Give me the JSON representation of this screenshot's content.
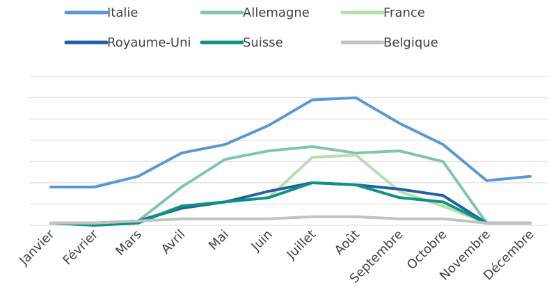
{
  "chart_data": {
    "type": "line",
    "categories": [
      "Janvier",
      "Février",
      "Mars",
      "Avril",
      "Mai",
      "Juin",
      "Juillet",
      "Août",
      "Septembre",
      "Octobre",
      "Novembre",
      "Décembre"
    ],
    "series": [
      {
        "name": "Italie",
        "color": "#5b97d5",
        "values": [
          1.8,
          1.8,
          2.3,
          3.4,
          3.8,
          4.7,
          5.9,
          6.0,
          4.8,
          3.8,
          2.1,
          2.3
        ]
      },
      {
        "name": "Allemagne",
        "color": "#7fc6aa",
        "values": [
          0.1,
          0.1,
          0.2,
          1.8,
          3.1,
          3.5,
          3.7,
          3.4,
          3.5,
          3.0,
          0.1,
          0.1
        ]
      },
      {
        "name": "France",
        "color": "#b5dfae",
        "values": [
          0.1,
          0.1,
          0.2,
          0.9,
          1.1,
          1.3,
          3.2,
          3.3,
          1.6,
          0.9,
          0.1,
          0.1
        ]
      },
      {
        "name": "Royaume-Uni",
        "color": "#225fa6",
        "values": [
          0.1,
          0.1,
          0.2,
          0.8,
          1.1,
          1.6,
          2.0,
          1.9,
          1.7,
          1.4,
          0.1,
          0.1
        ]
      },
      {
        "name": "Suisse",
        "color": "#0b9484",
        "values": [
          0.1,
          0.0,
          0.1,
          0.9,
          1.1,
          1.3,
          2.0,
          1.9,
          1.3,
          1.1,
          0.1,
          0.1
        ]
      },
      {
        "name": "Belgique",
        "color": "#c2c2c2",
        "values": [
          0.1,
          0.1,
          0.2,
          0.3,
          0.3,
          0.3,
          0.4,
          0.4,
          0.3,
          0.3,
          0.1,
          0.1
        ]
      }
    ],
    "ylim": [
      0,
      7
    ],
    "yticks": [
      0,
      1,
      2,
      3,
      4,
      5,
      6,
      7
    ],
    "grid": true
  }
}
